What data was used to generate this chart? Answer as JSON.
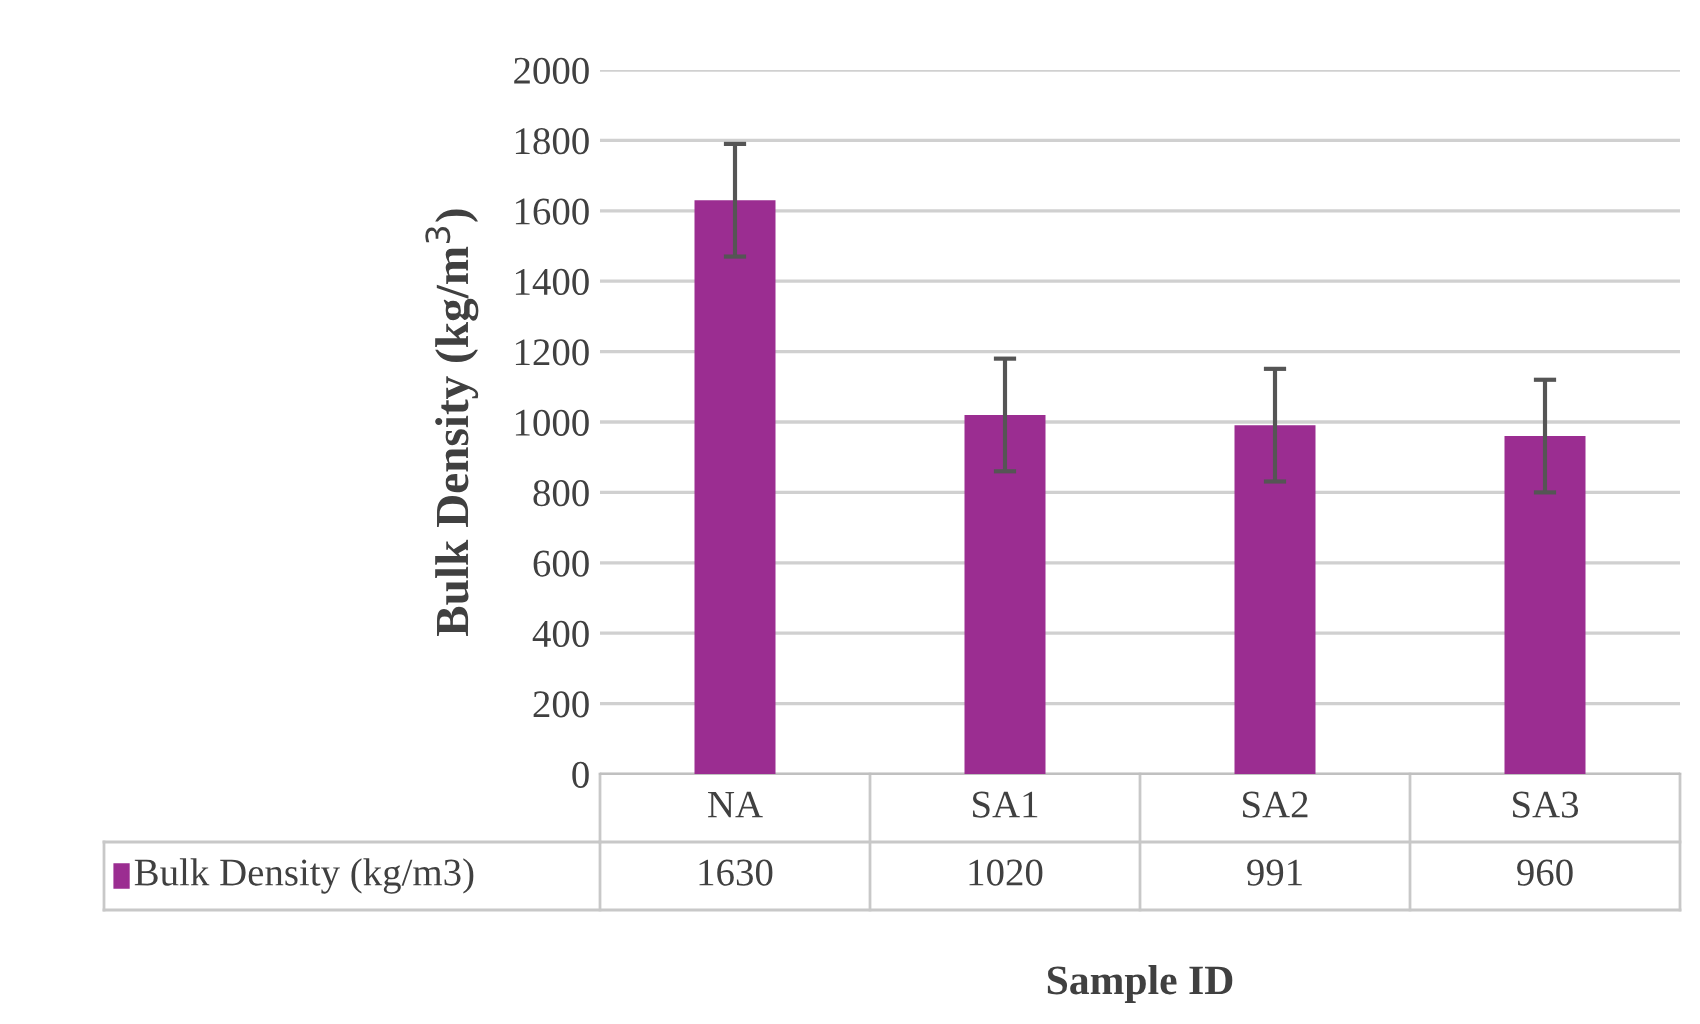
{
  "chart_data": {
    "type": "bar",
    "xlabel": "Sample ID",
    "ylabel": "Bulk Density (kg/m$^{3}$)",
    "categories": [
      "NA",
      "SA1",
      "SA2",
      "SA3"
    ],
    "series": [
      {
        "name": "Bulk Density (kg/m3)",
        "color": "#9b2d91",
        "values": [
          1630,
          1020,
          991,
          960
        ],
        "errors": [
          160,
          160,
          160,
          160
        ]
      }
    ],
    "ylim": [
      0,
      2000
    ],
    "yticks": [
      0,
      200,
      400,
      600,
      800,
      1000,
      1200,
      1400,
      1600,
      1800,
      2000
    ],
    "grid": "y",
    "data_labels": true,
    "legend": "bottom"
  }
}
